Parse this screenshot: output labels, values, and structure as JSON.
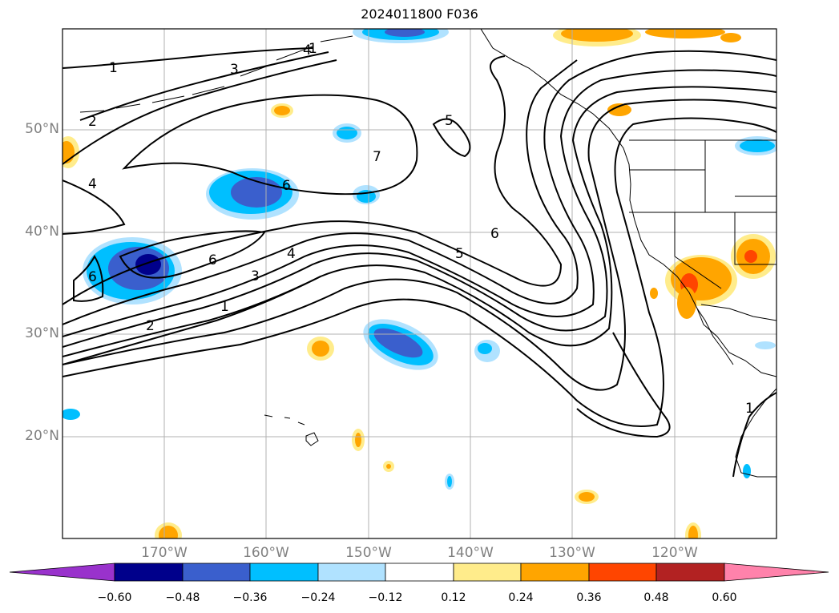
{
  "title": "2024011800 F036",
  "lat_labels": [
    "50°N",
    "40°N",
    "30°N",
    "20°N"
  ],
  "lon_labels": [
    "170°W",
    "160°W",
    "150°W",
    "140°W",
    "130°W",
    "120°W"
  ],
  "contour_labels": [
    "1",
    "1",
    "1",
    "1",
    "2",
    "2",
    "3",
    "3",
    "4",
    "4",
    "4",
    "5",
    "5",
    "6",
    "6",
    "6",
    "6",
    "7"
  ],
  "colorbar": {
    "ticks": [
      "−0.60",
      "−0.48",
      "−0.36",
      "−0.24",
      "−0.12",
      "0.12",
      "0.24",
      "0.36",
      "0.48",
      "0.60"
    ],
    "colors": [
      "#9932cc",
      "#00008b",
      "#3a5fcd",
      "#00bfff",
      "#b0e2ff",
      "#ffffff",
      "#ffec8b",
      "#ffa500",
      "#ff4500",
      "#b22222",
      "#ff82ab"
    ]
  },
  "map_colors": {
    "neg_light": "#b0e2ff",
    "neg_mid": "#00bfff",
    "neg_strong": "#3a5fcd",
    "neg_max": "#00008b",
    "pos_light": "#ffec8b",
    "pos_mid": "#ffa500",
    "pos_strong": "#ff4500"
  }
}
